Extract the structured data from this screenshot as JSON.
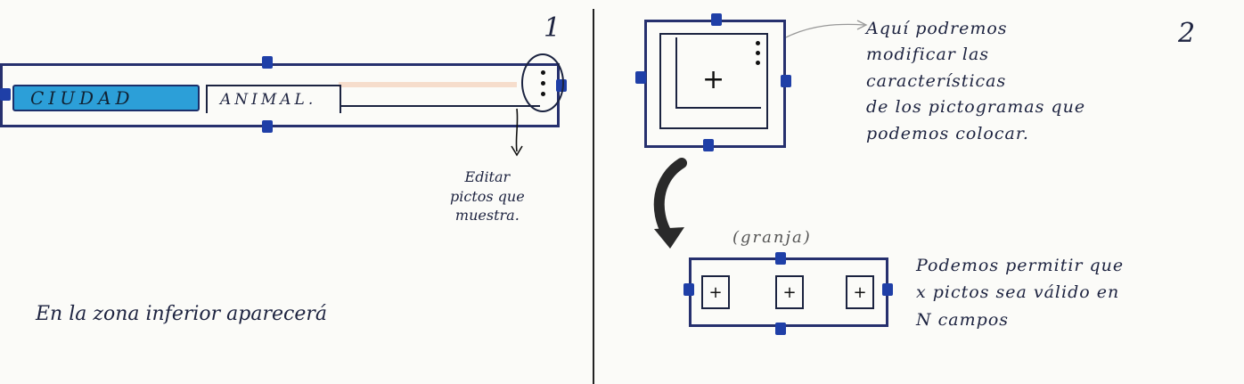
{
  "panel1": {
    "page_number": "1",
    "chips": {
      "ciudad": "CIUDAD",
      "animal": "ANIMAL."
    },
    "edit_note": [
      "Editar",
      "pictos que",
      "muestra."
    ],
    "bottom_text": "En la zona inferior aparecerá"
  },
  "panel2": {
    "page_number": "2",
    "modify_note": [
      "Aquí podremos",
      "modificar las",
      "características",
      "de los pictogramas que",
      "podemos colocar."
    ],
    "group_label": "(granja)",
    "multi_note": [
      "Podemos permitir que",
      "x pictos sea válido en",
      "N campos"
    ],
    "plus_symbol": "+"
  },
  "colors": {
    "handle": "#1f3fa7",
    "ciudad_chip": "#2c9fd8",
    "outline": "#26306e"
  }
}
